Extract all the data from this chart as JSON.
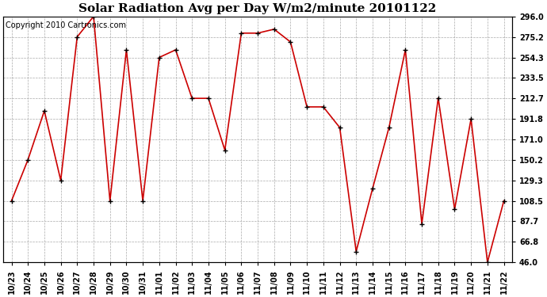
{
  "title": "Solar Radiation Avg per Day W/m2/minute 20101122",
  "copyright": "Copyright 2010 Cartronics.com",
  "x_labels": [
    "10/23",
    "10/24",
    "10/25",
    "10/26",
    "10/27",
    "10/28",
    "10/29",
    "10/30",
    "10/31",
    "11/01",
    "11/02",
    "11/03",
    "11/04",
    "11/05",
    "11/06",
    "11/07",
    "11/08",
    "11/09",
    "11/10",
    "11/11",
    "11/12",
    "11/13",
    "11/14",
    "11/15",
    "11/16",
    "11/17",
    "11/18",
    "11/19",
    "11/20",
    "11/21",
    "11/22"
  ],
  "y_values": [
    108.5,
    150.2,
    200.0,
    129.3,
    275.2,
    296.0,
    108.5,
    262.0,
    108.5,
    254.3,
    262.0,
    212.7,
    212.7,
    160.0,
    279.0,
    279.0,
    283.0,
    270.0,
    204.0,
    204.0,
    183.0,
    57.0,
    121.0,
    183.0,
    262.0,
    85.0,
    213.0,
    100.0,
    191.8,
    46.0,
    108.5
  ],
  "line_color": "#cc0000",
  "marker_color": "#000000",
  "bg_color": "#ffffff",
  "grid_color": "#aaaaaa",
  "yticks": [
    46.0,
    66.8,
    87.7,
    108.5,
    129.3,
    150.2,
    171.0,
    191.8,
    212.7,
    233.5,
    254.3,
    275.2,
    296.0
  ],
  "ylim": [
    46.0,
    296.0
  ],
  "title_fontsize": 11,
  "copyright_fontsize": 7,
  "tick_fontsize": 7,
  "ytick_fontsize": 7
}
